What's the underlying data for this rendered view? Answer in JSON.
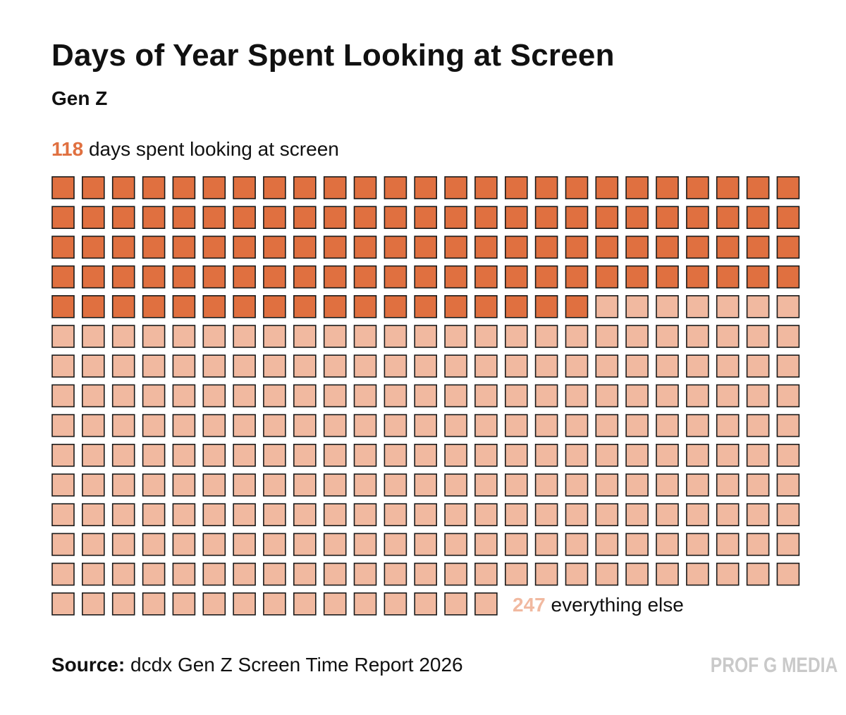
{
  "header": {
    "title": "Days of Year Spent Looking at Screen",
    "subtitle": "Gen Z"
  },
  "labels": {
    "screen_value": "118",
    "screen_text": "days spent looking at screen",
    "else_value": "247",
    "else_text": "everything else"
  },
  "footer": {
    "source_label": "Source:",
    "source_text": "dcdx Gen Z Screen Time Report 2026",
    "brand": "PROF G MEDIA"
  },
  "colors": {
    "screen": "#e07040",
    "else": "#f1b9a0",
    "outline": "#1a1a1a"
  },
  "chart_data": {
    "type": "waffle",
    "title": "Days of Year Spent Looking at Screen",
    "subtitle": "Gen Z",
    "categories": [
      "days spent looking at screen",
      "everything else"
    ],
    "values": [
      118,
      247
    ],
    "total": 365,
    "columns": 25,
    "rows": 15
  }
}
